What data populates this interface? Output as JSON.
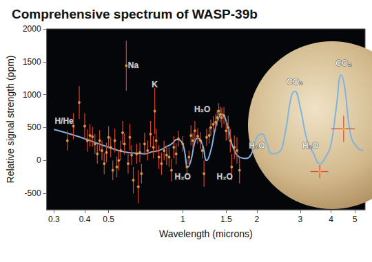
{
  "chart_data": {
    "type": "scatter",
    "title": "Comprehensive spectrum of WASP-39b",
    "x_label": "Wavelength (microns)",
    "y_label": "Relative signal strength (ppm)",
    "log": "x",
    "grid": false,
    "xlim": [
      0.28,
      5.5
    ],
    "xticks": [
      0.3,
      0.4,
      0.5,
      1,
      1.5,
      2,
      3,
      4,
      5
    ],
    "ylim": [
      -750,
      2000
    ],
    "yticks": [
      -500,
      0,
      500,
      1000,
      1500,
      2000
    ],
    "series": [
      {
        "type": "scatter",
        "color": "#f5b041",
        "marker": "circle",
        "x": [
          0.34,
          0.36,
          0.38,
          0.4,
          0.41,
          0.42,
          0.43,
          0.44,
          0.45,
          0.46,
          0.47,
          0.48,
          0.49,
          0.5,
          0.51,
          0.52,
          0.53,
          0.54,
          0.55,
          0.56,
          0.57,
          0.58,
          0.59,
          0.6,
          0.61,
          0.62,
          0.63,
          0.65,
          0.66,
          0.67,
          0.68,
          0.7,
          0.72,
          0.74,
          0.76,
          0.77,
          0.78,
          0.8,
          0.82,
          0.84,
          0.86,
          0.88,
          0.9,
          0.92,
          0.94,
          0.96,
          1.0,
          1.04,
          1.06,
          1.08,
          1.1,
          1.12,
          1.15,
          1.18,
          1.2,
          1.22,
          1.25,
          1.28,
          1.3,
          1.33,
          1.36,
          1.38,
          1.4,
          1.42,
          1.44,
          1.47,
          1.5,
          1.53,
          1.56,
          1.58,
          1.62,
          1.66,
          1.7
        ],
        "values": [
          300,
          520,
          880,
          520,
          300,
          380,
          360,
          250,
          100,
          300,
          150,
          -50,
          120,
          350,
          200,
          -150,
          300,
          -100,
          0,
          150,
          420,
          250,
          1440,
          -50,
          350,
          80,
          -300,
          100,
          -400,
          120,
          -200,
          250,
          150,
          400,
          200,
          750,
          300,
          50,
          -50,
          150,
          80,
          50,
          -150,
          200,
          100,
          330,
          250,
          -100,
          50,
          380,
          300,
          450,
          370,
          300,
          150,
          -200,
          350,
          380,
          500,
          550,
          580,
          650,
          750,
          700,
          650,
          680,
          450,
          500,
          300,
          -100,
          200,
          150,
          -150
        ],
        "errors": [
          150,
          200,
          250,
          200,
          170,
          170,
          150,
          150,
          150,
          160,
          150,
          160,
          150,
          170,
          150,
          150,
          180,
          160,
          150,
          150,
          180,
          160,
          380,
          150,
          200,
          150,
          200,
          150,
          250,
          150,
          150,
          170,
          150,
          200,
          170,
          350,
          180,
          180,
          170,
          150,
          150,
          150,
          170,
          170,
          160,
          120,
          120,
          120,
          100,
          150,
          120,
          150,
          120,
          130,
          120,
          200,
          130,
          120,
          120,
          120,
          120,
          120,
          120,
          120,
          150,
          130,
          150,
          180,
          180,
          200,
          180,
          200,
          200
        ]
      },
      {
        "type": "scatter",
        "color": "#f5b041",
        "marker": "circle",
        "x": [
          3.6,
          4.5
        ],
        "values": [
          -170,
          480
        ],
        "errors": [
          100,
          200
        ],
        "x_errors": [
          0.3,
          0.5
        ]
      },
      {
        "type": "line",
        "color": "#7fb3e0",
        "line_style": "solid",
        "x": [
          0.3,
          0.35,
          0.4,
          0.45,
          0.5,
          0.55,
          0.6,
          0.65,
          0.7,
          0.75,
          0.8,
          0.85,
          0.9,
          0.95,
          1.0,
          1.05,
          1.08,
          1.12,
          1.15,
          1.2,
          1.25,
          1.3,
          1.35,
          1.4,
          1.45,
          1.5,
          1.55,
          1.6,
          1.7,
          1.8,
          1.9,
          2.0,
          2.1,
          2.2,
          2.3,
          2.45,
          2.6,
          2.75,
          2.85,
          3.0,
          3.2,
          3.4,
          3.6,
          3.8,
          4.0,
          4.2,
          4.4,
          4.55,
          4.8,
          5.1,
          5.4
        ],
        "values": [
          470,
          400,
          330,
          260,
          200,
          150,
          120,
          110,
          100,
          130,
          150,
          200,
          250,
          320,
          250,
          -100,
          0,
          280,
          340,
          250,
          0,
          150,
          450,
          650,
          700,
          600,
          400,
          200,
          50,
          30,
          100,
          350,
          400,
          250,
          100,
          120,
          400,
          950,
          1050,
          800,
          300,
          100,
          -50,
          50,
          250,
          800,
          1300,
          1100,
          400,
          200,
          150
        ]
      }
    ],
    "annotations": [
      {
        "text": "H/He",
        "x": 0.33,
        "y": 600
      },
      {
        "text": "Na",
        "x": 0.63,
        "y": 1450
      },
      {
        "text": "K",
        "x": 0.77,
        "y": 1150
      },
      {
        "text": "H₂O",
        "x": 1.2,
        "y": 780
      },
      {
        "text": "H₂O",
        "x": 1.0,
        "y": -250
      },
      {
        "text": "H₂O",
        "x": 1.48,
        "y": -250
      },
      {
        "text": "H₂O",
        "x": 2.0,
        "y": 220
      },
      {
        "text": "H₂O",
        "x": 3.3,
        "y": 220
      },
      {
        "text": "CO₂",
        "x": 2.85,
        "y": 1200
      },
      {
        "text": "CO₂",
        "x": 4.5,
        "y": 1480
      }
    ]
  }
}
